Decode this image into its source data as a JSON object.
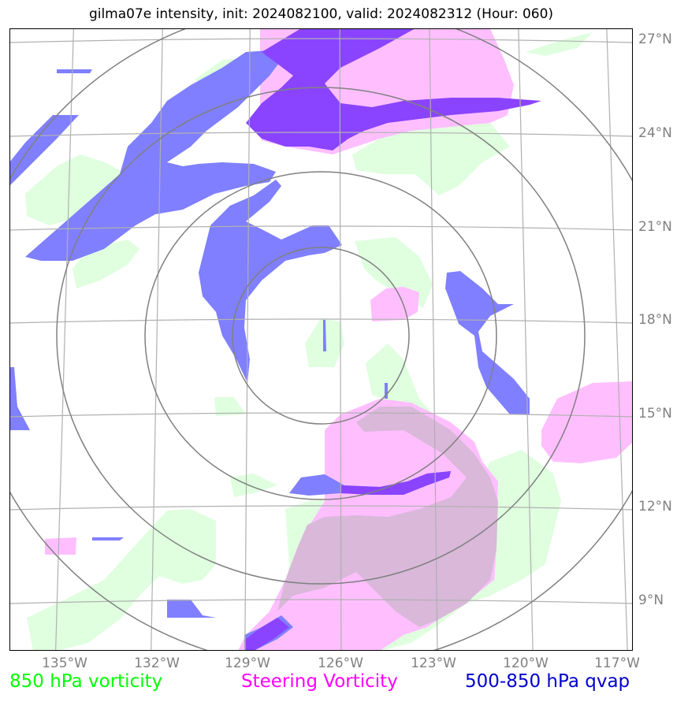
{
  "title": "gilma07e intensity, init: 2024082100, valid: 2024082312 (Hour: 060)",
  "lon_ticks": [
    "135°W",
    "132°W",
    "129°W",
    "126°W",
    "123°W",
    "120°W",
    "117°W"
  ],
  "lat_ticks": [
    "27°N",
    "24°N",
    "21°N",
    "18°N",
    "15°N",
    "12°N",
    "9°N"
  ],
  "legend": {
    "vorticity_850": "850 hPa vorticity",
    "steering": "Steering Vorticity",
    "qvap": "500-850 hPa qvap"
  },
  "colors": {
    "vorticity_850": "#00ff00",
    "steering": "#ff00ff",
    "qvap": "#0000cc",
    "vorticity_fill": "#dfffdf",
    "steering_fill": "#ffbfff",
    "qvap_fill": "#7f7fff",
    "overlap_fill": "#8a44ff",
    "grid": "#b0b0b0",
    "rings": "#808080"
  },
  "map": {
    "projection": "orthographic",
    "center": {
      "lon": -126.3,
      "lat": 17.4
    },
    "extent": {
      "lon": [
        -136.0,
        -116.5
      ],
      "lat": [
        7.5,
        27.5
      ]
    },
    "range_rings_deg": [
      3,
      6,
      9,
      12
    ]
  }
}
